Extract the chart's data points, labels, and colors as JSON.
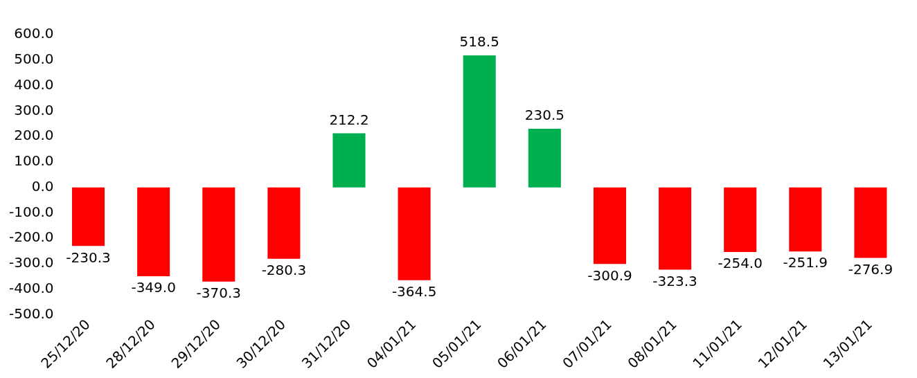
{
  "chart_data": {
    "type": "bar",
    "categories": [
      "25/12/20",
      "28/12/20",
      "29/12/20",
      "30/12/20",
      "31/12/20",
      "04/01/21",
      "05/01/21",
      "06/01/21",
      "07/01/21",
      "08/01/21",
      "11/01/21",
      "12/01/21",
      "13/01/21"
    ],
    "values": [
      -230.3,
      -349.0,
      -370.3,
      -280.3,
      212.2,
      -364.5,
      518.5,
      230.5,
      -300.9,
      -323.3,
      -254.0,
      -251.9,
      -276.9
    ],
    "value_labels": [
      "-230.3",
      "-349.0",
      "-370.3",
      "-280.3",
      "212.2",
      "-364.5",
      "518.5",
      "230.5",
      "-300.9",
      "-323.3",
      "-254.0",
      "-251.9",
      "-276.9"
    ],
    "colors": [
      "#ff0000",
      "#ff0000",
      "#ff0000",
      "#ff0000",
      "#00b050",
      "#ff0000",
      "#00b050",
      "#00b050",
      "#ff0000",
      "#ff0000",
      "#ff0000",
      "#ff0000",
      "#ff0000"
    ],
    "ylim": [
      -500,
      600
    ],
    "yticks": [
      {
        "value": -500,
        "label": "-500.0"
      },
      {
        "value": -400,
        "label": "-400.0"
      },
      {
        "value": -300,
        "label": "-300.0"
      },
      {
        "value": -200,
        "label": "-200.0"
      },
      {
        "value": -100,
        "label": "-100.0"
      },
      {
        "value": 0,
        "label": "0.0"
      },
      {
        "value": 100,
        "label": "100.0"
      },
      {
        "value": 200,
        "label": "200.0"
      },
      {
        "value": 300,
        "label": "300.0"
      },
      {
        "value": 400,
        "label": "400.0"
      },
      {
        "value": 500,
        "label": "500.0"
      },
      {
        "value": 600,
        "label": "600.0"
      }
    ],
    "grid": false,
    "legend": false
  }
}
